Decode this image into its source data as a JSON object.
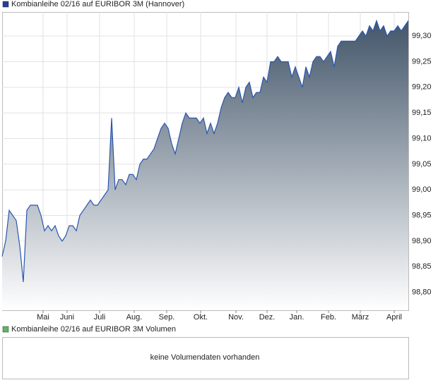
{
  "chart_data": [
    {
      "type": "area",
      "legend": "Kombianleihe 02/16 auf EURIBOR 3M (Hannover)",
      "legend_color": "#1f3f99",
      "series": [
        {
          "name": "Kombianleihe 02/16 auf EURIBOR 3M (Hannover)",
          "color": "#2a56b0",
          "values": [
            98.87,
            98.9,
            98.96,
            98.95,
            98.94,
            98.89,
            98.82,
            98.96,
            98.97,
            98.97,
            98.97,
            98.95,
            98.92,
            98.93,
            98.92,
            98.93,
            98.91,
            98.9,
            98.91,
            98.93,
            98.93,
            98.92,
            98.95,
            98.96,
            98.97,
            98.98,
            98.97,
            98.97,
            98.98,
            98.99,
            99.0,
            99.14,
            99.0,
            99.02,
            99.02,
            99.01,
            99.03,
            99.03,
            99.02,
            99.05,
            99.06,
            99.06,
            99.07,
            99.08,
            99.1,
            99.12,
            99.13,
            99.12,
            99.09,
            99.07,
            99.1,
            99.13,
            99.15,
            99.14,
            99.14,
            99.14,
            99.13,
            99.14,
            99.11,
            99.13,
            99.11,
            99.13,
            99.16,
            99.18,
            99.19,
            99.18,
            99.18,
            99.2,
            99.17,
            99.2,
            99.21,
            99.18,
            99.19,
            99.19,
            99.22,
            99.21,
            99.25,
            99.25,
            99.26,
            99.25,
            99.25,
            99.25,
            99.22,
            99.24,
            99.22,
            99.2,
            99.24,
            99.22,
            99.25,
            99.26,
            99.26,
            99.25,
            99.26,
            99.27,
            99.24,
            99.28,
            99.29,
            99.29,
            99.29,
            99.29,
            99.29,
            99.3,
            99.31,
            99.3,
            99.32,
            99.31,
            99.33,
            99.31,
            99.32,
            99.3,
            99.31,
            99.31,
            99.32,
            99.31,
            99.32,
            99.33
          ]
        }
      ],
      "xlim": [
        0,
        115
      ],
      "xticks": [
        {
          "value": 11.6,
          "label": "Mai"
        },
        {
          "value": 18.4,
          "label": "Juni"
        },
        {
          "value": 27.6,
          "label": "Juli"
        },
        {
          "value": 37.4,
          "label": "Aug."
        },
        {
          "value": 46.6,
          "label": "Sep."
        },
        {
          "value": 56.2,
          "label": "Okt."
        },
        {
          "value": 66.2,
          "label": "Nov."
        },
        {
          "value": 75,
          "label": "Dez."
        },
        {
          "value": 83.4,
          "label": "Jan."
        },
        {
          "value": 92.4,
          "label": "Feb."
        },
        {
          "value": 101.4,
          "label": "März"
        },
        {
          "value": 111,
          "label": "April"
        }
      ],
      "ylim": [
        98.765,
        99.347
      ],
      "yticks": [
        {
          "value": 98.8,
          "label": "98,80"
        },
        {
          "value": 98.85,
          "label": "98,85"
        },
        {
          "value": 98.9,
          "label": "98,90"
        },
        {
          "value": 98.95,
          "label": "98,95"
        },
        {
          "value": 99.0,
          "label": "99,00"
        },
        {
          "value": 99.05,
          "label": "99,05"
        },
        {
          "value": 99.1,
          "label": "99,10"
        },
        {
          "value": 99.15,
          "label": "99,15"
        },
        {
          "value": 99.2,
          "label": "99,20"
        },
        {
          "value": 99.25,
          "label": "99,25"
        },
        {
          "value": 99.3,
          "label": "99,30"
        }
      ],
      "grid": true
    },
    {
      "type": "empty",
      "legend": "Kombianleihe 02/16 auf EURIBOR 3M Volumen",
      "legend_color": "#5cb85c",
      "message": "keine Volumendaten vorhanden"
    }
  ]
}
